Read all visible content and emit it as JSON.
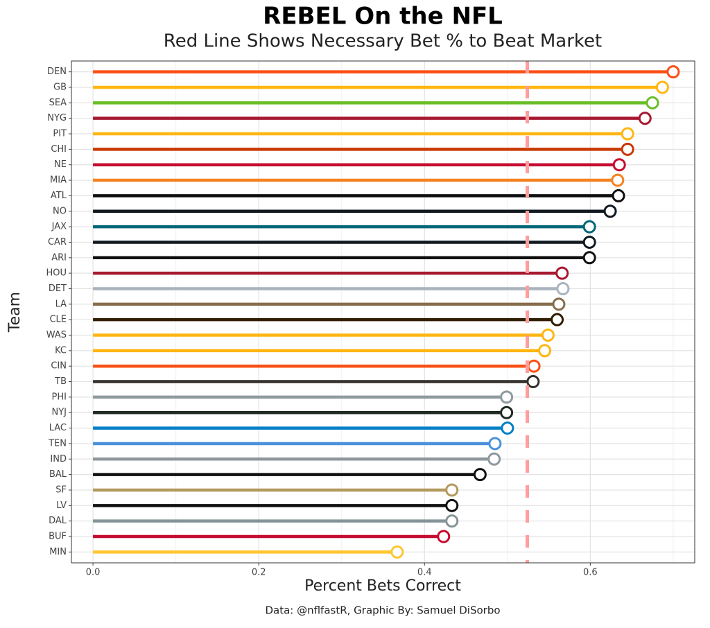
{
  "chart_data": {
    "type": "bar",
    "orientation": "horizontal",
    "title": "REBEL On the NFL",
    "subtitle": "Red Line Shows Necessary Bet % to Beat Market",
    "x_label": "Percent Bets Correct",
    "y_label": "Team",
    "caption": "Data: @nflfastR, Graphic By: Samuel DiSorbo",
    "categories": [
      "DEN",
      "GB",
      "SEA",
      "NYG",
      "PIT",
      "CHI",
      "NE",
      "MIA",
      "ATL",
      "NO",
      "JAX",
      "CAR",
      "ARI",
      "HOU",
      "DET",
      "LA",
      "CLE",
      "WAS",
      "KC",
      "CIN",
      "TB",
      "PHI",
      "NYJ",
      "LAC",
      "TEN",
      "IND",
      "BAL",
      "SF",
      "LV",
      "DAL",
      "BUF",
      "MIN"
    ],
    "values": [
      0.7,
      0.687,
      0.675,
      0.666,
      0.645,
      0.645,
      0.635,
      0.633,
      0.634,
      0.624,
      0.599,
      0.599,
      0.599,
      0.566,
      0.567,
      0.562,
      0.56,
      0.549,
      0.545,
      0.532,
      0.531,
      0.499,
      0.499,
      0.5,
      0.485,
      0.484,
      0.467,
      0.433,
      0.433,
      0.433,
      0.423,
      0.367
    ],
    "colors": [
      "#FB4F14",
      "#FFB612",
      "#69BE28",
      "#A71930",
      "#FFB612",
      "#C83803",
      "#C60C30",
      "#F58220",
      "#101010",
      "#101820",
      "#006778",
      "#101820",
      "#101010",
      "#A71930",
      "#A9B4BE",
      "#866D4B",
      "#311D00",
      "#FFB612",
      "#FFB612",
      "#FB4F14",
      "#34302B",
      "#8E9A9E",
      "#1E2A22",
      "#0080C6",
      "#4B92DB",
      "#8E979C",
      "#101010",
      "#B3995D",
      "#101010",
      "#869397",
      "#C60C30",
      "#FFC62F"
    ],
    "xlim": [
      -0.026,
      0.726
    ],
    "xticks": [
      {
        "value": 0,
        "label": "0.0"
      },
      0.2,
      0.4,
      0.6
    ],
    "minor_xticks": [
      0.1,
      0.3,
      0.5,
      0.7
    ],
    "reference_line": {
      "value": 0.524,
      "color": "#ff9e9e"
    },
    "grid": true
  }
}
